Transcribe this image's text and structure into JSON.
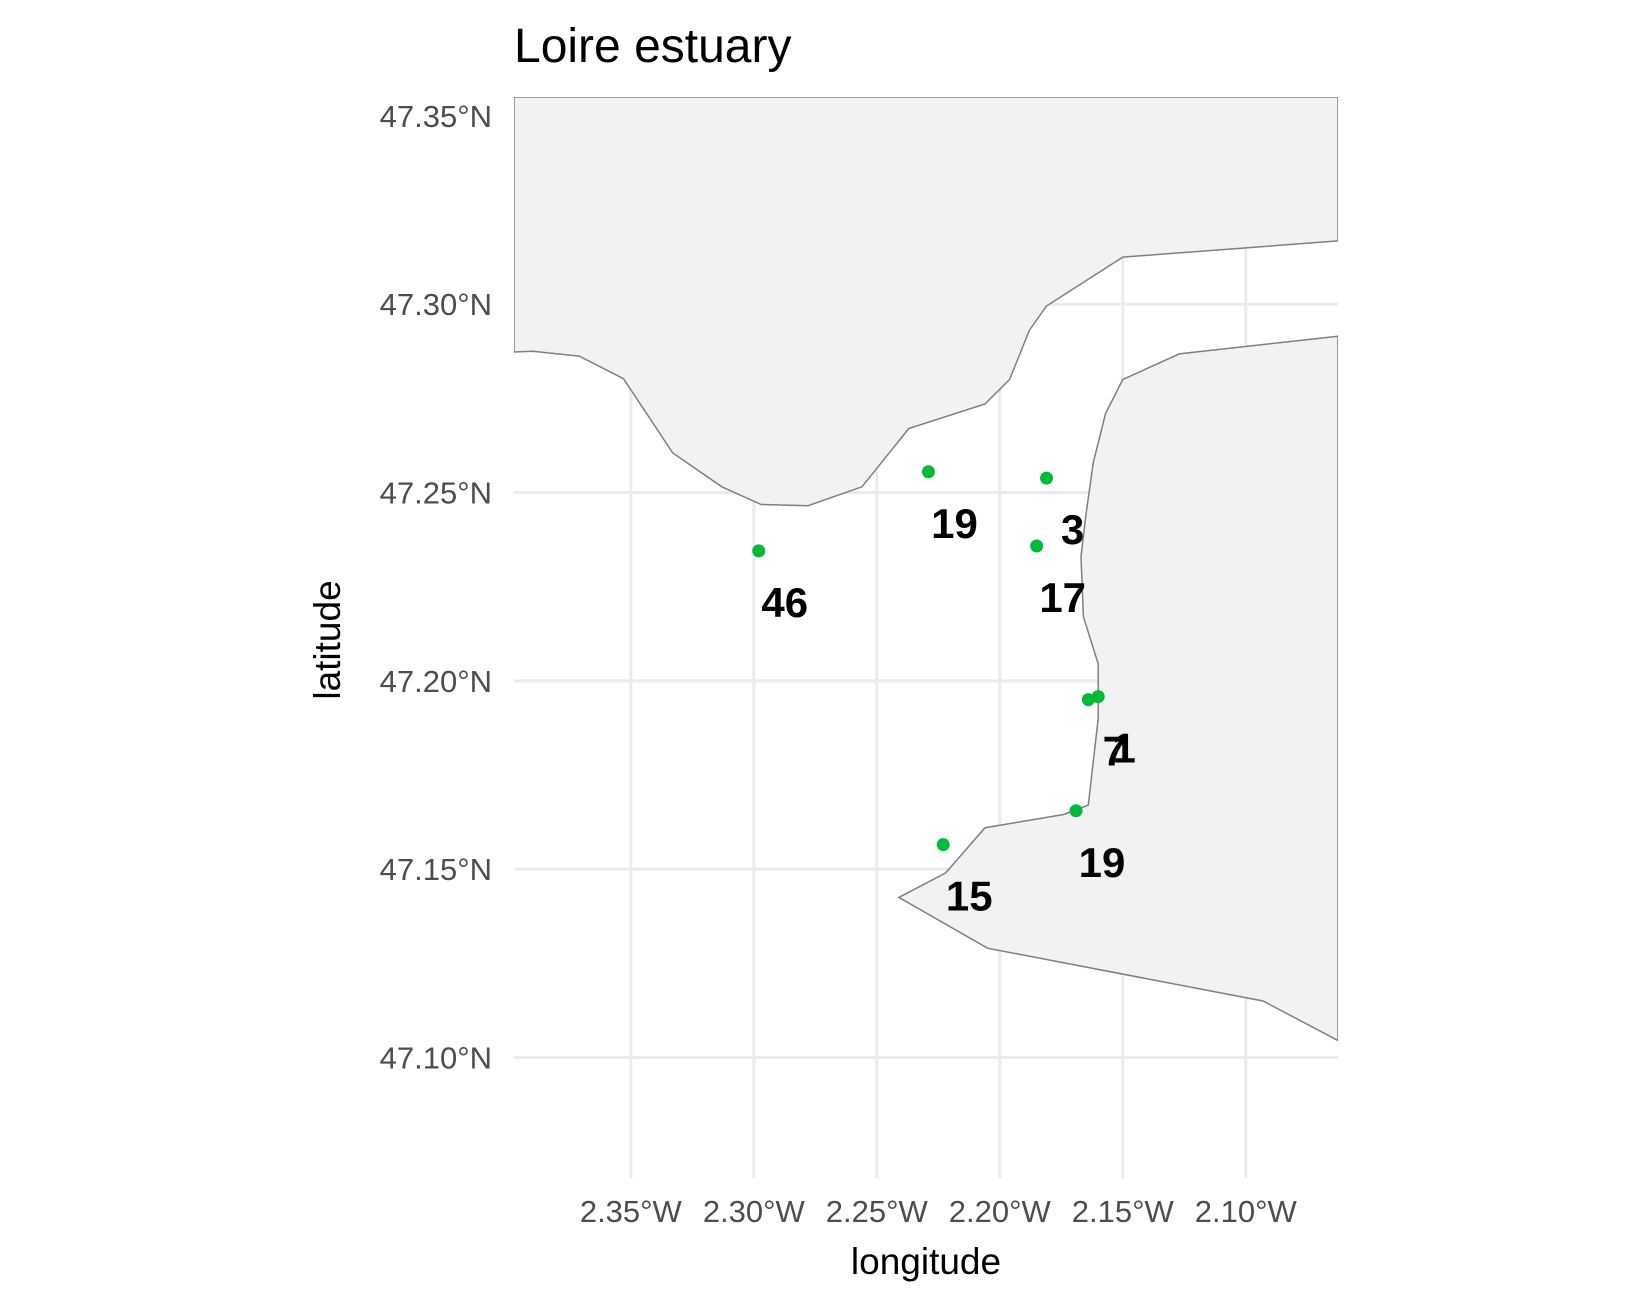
{
  "chart_data": {
    "type": "map",
    "title": "Loire estuary",
    "xlabel": "longitude",
    "ylabel": "latitude",
    "xlim": [
      -2.3975,
      -2.0625
    ],
    "ylim": [
      47.068,
      47.355
    ],
    "grid": true,
    "colors": {
      "point": "#00ba38",
      "land_fill": "#f2f2f2",
      "land_stroke": "#7f7f7f",
      "grid": "#ebebeb"
    },
    "x_ticks": [
      {
        "value": -2.35,
        "label": "2.35°W"
      },
      {
        "value": -2.3,
        "label": "2.30°W"
      },
      {
        "value": -2.25,
        "label": "2.25°W"
      },
      {
        "value": -2.2,
        "label": "2.20°W"
      },
      {
        "value": -2.15,
        "label": "2.15°W"
      },
      {
        "value": -2.1,
        "label": "2.10°W"
      }
    ],
    "y_ticks": [
      {
        "value": 47.1,
        "label": "47.10°N"
      },
      {
        "value": 47.15,
        "label": "47.15°N"
      },
      {
        "value": 47.2,
        "label": "47.20°N"
      },
      {
        "value": 47.25,
        "label": "47.25°N"
      },
      {
        "value": 47.3,
        "label": "47.30°N"
      },
      {
        "value": 47.35,
        "label": "47.35°N"
      }
    ],
    "points": [
      {
        "lon": -2.298,
        "lat": 47.2345,
        "label": "46"
      },
      {
        "lon": -2.229,
        "lat": 47.2555,
        "label": "19"
      },
      {
        "lon": -2.181,
        "lat": 47.2538,
        "label": "3"
      },
      {
        "lon": -2.185,
        "lat": 47.2358,
        "label": "17"
      },
      {
        "lon": -2.164,
        "lat": 47.195,
        "label": "7"
      },
      {
        "lon": -2.16,
        "lat": 47.1958,
        "label": "1"
      },
      {
        "lon": -2.169,
        "lat": 47.1655,
        "label": "19"
      },
      {
        "lon": -2.223,
        "lat": 47.1565,
        "label": "15"
      }
    ],
    "land": [
      {
        "name": "north-shore",
        "coords": [
          [
            -2.3975,
            47.355
          ],
          [
            -2.0625,
            47.355
          ],
          [
            -2.0625,
            47.3168
          ],
          [
            -2.15,
            47.3125
          ],
          [
            -2.181,
            47.2995
          ],
          [
            -2.188,
            47.293
          ],
          [
            -2.196,
            47.28
          ],
          [
            -2.206,
            47.2735
          ],
          [
            -2.237,
            47.267
          ],
          [
            -2.256,
            47.2515
          ],
          [
            -2.278,
            47.2465
          ],
          [
            -2.297,
            47.2468
          ],
          [
            -2.313,
            47.2515
          ],
          [
            -2.333,
            47.2605
          ],
          [
            -2.353,
            47.2802
          ],
          [
            -2.371,
            47.2862
          ],
          [
            -2.39,
            47.2875
          ],
          [
            -2.3975,
            47.2873
          ]
        ]
      },
      {
        "name": "south-shore",
        "coords": [
          [
            -2.0625,
            47.2915
          ],
          [
            -2.127,
            47.2868
          ],
          [
            -2.15,
            47.28
          ],
          [
            -2.157,
            47.271
          ],
          [
            -2.162,
            47.258
          ],
          [
            -2.165,
            47.244
          ],
          [
            -2.167,
            47.233
          ],
          [
            -2.166,
            47.217
          ],
          [
            -2.16,
            47.2045
          ],
          [
            -2.16,
            47.19
          ],
          [
            -2.164,
            47.167
          ],
          [
            -2.174,
            47.1645
          ],
          [
            -2.206,
            47.161
          ],
          [
            -2.222,
            47.149
          ],
          [
            -2.241,
            47.1425
          ],
          [
            -2.205,
            47.129
          ],
          [
            -2.093,
            47.115
          ],
          [
            -2.0625,
            47.1045
          ]
        ]
      }
    ]
  }
}
